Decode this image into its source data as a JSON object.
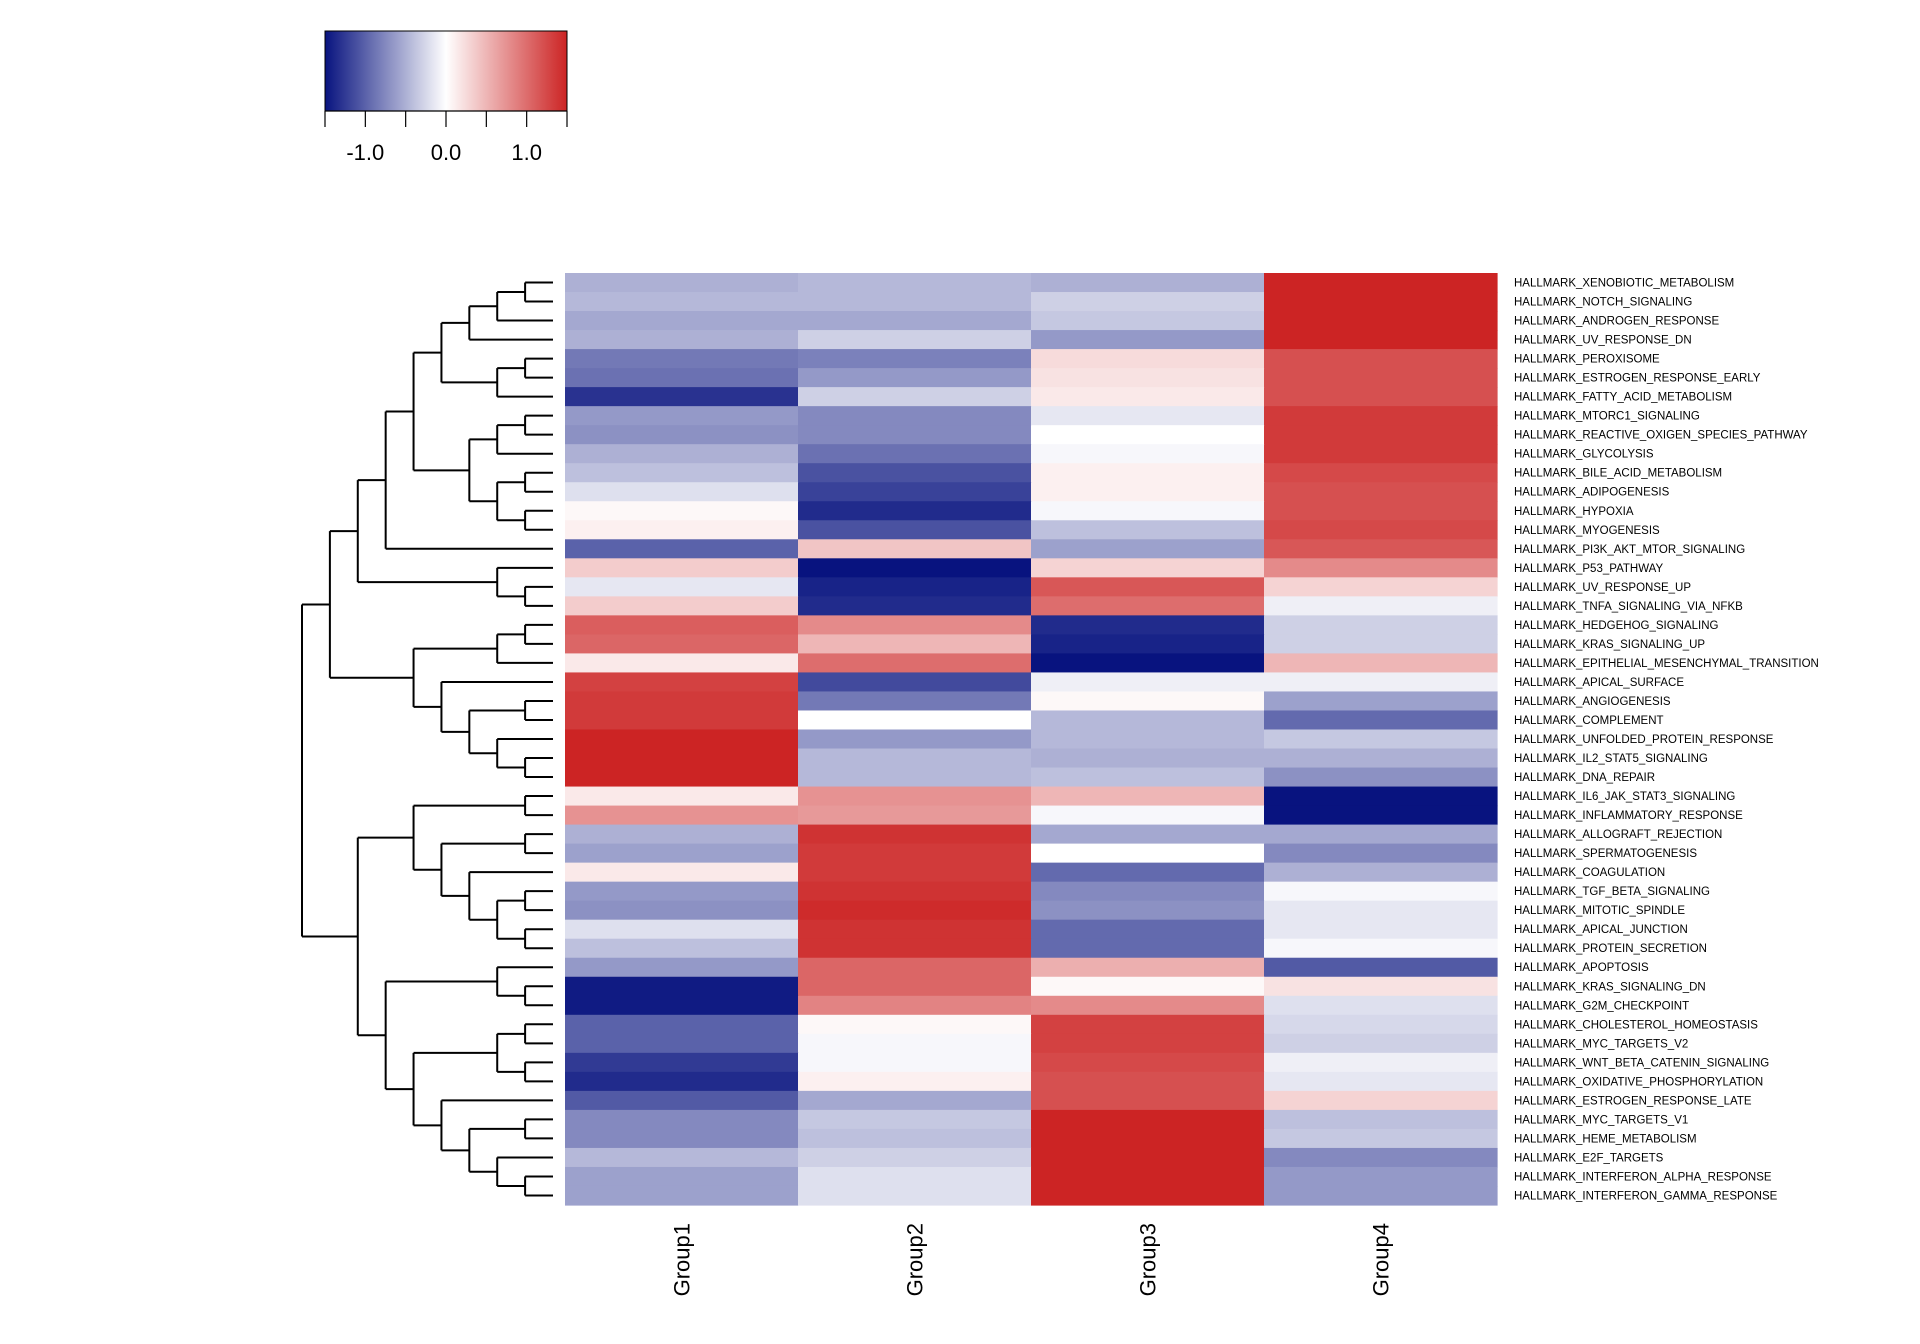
{
  "chart_data": {
    "type": "heatmap",
    "title": "",
    "xlabel": "",
    "ylabel": "",
    "color_scale": {
      "low_color": "#08137f",
      "mid_color": "#ffffff",
      "high_color": "#cc2424",
      "range": [
        -1.5,
        1.5
      ],
      "ticks": [
        -1.5,
        -1.0,
        -0.5,
        0.0,
        0.5,
        1.0,
        1.5
      ],
      "tick_labels": [
        "-1.0",
        "0.0",
        "1.0"
      ],
      "tick_label_values": [
        -1.0,
        0.0,
        1.0
      ],
      "legend_placement": "top-left"
    },
    "columns": [
      "Group1",
      "Group2",
      "Group3",
      "Group4"
    ],
    "rows": [
      "HALLMARK_XENOBIOTIC_METABOLISM",
      "HALLMARK_NOTCH_SIGNALING",
      "HALLMARK_ANDROGEN_RESPONSE",
      "HALLMARK_UV_RESPONSE_DN",
      "HALLMARK_PEROXISOME",
      "HALLMARK_ESTROGEN_RESPONSE_EARLY",
      "HALLMARK_FATTY_ACID_METABOLISM",
      "HALLMARK_MTORC1_SIGNALING",
      "HALLMARK_REACTIVE_OXIGEN_SPECIES_PATHWAY",
      "HALLMARK_GLYCOLYSIS",
      "HALLMARK_BILE_ACID_METABOLISM",
      "HALLMARK_ADIPOGENESIS",
      "HALLMARK_HYPOXIA",
      "HALLMARK_MYOGENESIS",
      "HALLMARK_PI3K_AKT_MTOR_SIGNALING",
      "HALLMARK_P53_PATHWAY",
      "HALLMARK_UV_RESPONSE_UP",
      "HALLMARK_TNFA_SIGNALING_VIA_NFKB",
      "HALLMARK_HEDGEHOG_SIGNALING",
      "HALLMARK_KRAS_SIGNALING_UP",
      "HALLMARK_EPITHELIAL_MESENCHYMAL_TRANSITION",
      "HALLMARK_APICAL_SURFACE",
      "HALLMARK_ANGIOGENESIS",
      "HALLMARK_COMPLEMENT",
      "HALLMARK_UNFOLDED_PROTEIN_RESPONSE",
      "HALLMARK_IL2_STAT5_SIGNALING",
      "HALLMARK_DNA_REPAIR",
      "HALLMARK_IL6_JAK_STAT3_SIGNALING",
      "HALLMARK_INFLAMMATORY_RESPONSE",
      "HALLMARK_ALLOGRAFT_REJECTION",
      "HALLMARK_SPERMATOGENESIS",
      "HALLMARK_COAGULATION",
      "HALLMARK_TGF_BETA_SIGNALING",
      "HALLMARK_MITOTIC_SPINDLE",
      "HALLMARK_APICAL_JUNCTION",
      "HALLMARK_PROTEIN_SECRETION",
      "HALLMARK_APOPTOSIS",
      "HALLMARK_KRAS_SIGNALING_DN",
      "HALLMARK_G2M_CHECKPOINT",
      "HALLMARK_CHOLESTEROL_HOMEOSTASIS",
      "HALLMARK_MYC_TARGETS_V2",
      "HALLMARK_WNT_BETA_CATENIN_SIGNALING",
      "HALLMARK_OXIDATIVE_PHOSPHORYLATION",
      "HALLMARK_ESTROGEN_RESPONSE_LATE",
      "HALLMARK_MYC_TARGETS_V1",
      "HALLMARK_HEME_METABOLISM",
      "HALLMARK_E2F_TARGETS",
      "HALLMARK_INTERFERON_ALPHA_RESPONSE",
      "HALLMARK_INTERFERON_GAMMA_RESPONSE"
    ],
    "values": [
      [
        -0.5,
        -0.45,
        -0.5,
        1.5
      ],
      [
        -0.45,
        -0.45,
        -0.3,
        1.5
      ],
      [
        -0.55,
        -0.55,
        -0.35,
        1.5
      ],
      [
        -0.5,
        -0.3,
        -0.65,
        1.5
      ],
      [
        -0.85,
        -0.8,
        0.25,
        1.2
      ],
      [
        -0.9,
        -0.65,
        0.2,
        1.2
      ],
      [
        -1.3,
        -0.3,
        0.15,
        1.2
      ],
      [
        -0.65,
        -0.75,
        -0.15,
        1.35
      ],
      [
        -0.7,
        -0.75,
        0.0,
        1.35
      ],
      [
        -0.5,
        -0.9,
        -0.05,
        1.35
      ],
      [
        -0.4,
        -1.1,
        0.1,
        1.25
      ],
      [
        -0.2,
        -1.2,
        0.1,
        1.2
      ],
      [
        0.05,
        -1.35,
        -0.05,
        1.2
      ],
      [
        0.1,
        -1.1,
        -0.4,
        1.25
      ],
      [
        -1.0,
        0.4,
        -0.6,
        1.15
      ],
      [
        0.35,
        -1.55,
        0.3,
        0.8
      ],
      [
        -0.15,
        -1.4,
        1.15,
        0.3
      ],
      [
        0.35,
        -1.35,
        1.0,
        -0.1
      ],
      [
        1.1,
        0.8,
        -1.35,
        -0.3
      ],
      [
        1.05,
        0.5,
        -1.4,
        -0.3
      ],
      [
        0.15,
        1.0,
        -1.55,
        0.5
      ],
      [
        1.3,
        -1.15,
        -0.1,
        -0.1
      ],
      [
        1.35,
        -0.85,
        0.05,
        -0.6
      ],
      [
        1.35,
        0.0,
        -0.45,
        -0.95
      ],
      [
        1.5,
        -0.65,
        -0.45,
        -0.35
      ],
      [
        1.5,
        -0.45,
        -0.5,
        -0.5
      ],
      [
        1.5,
        -0.45,
        -0.4,
        -0.7
      ],
      [
        0.15,
        0.75,
        0.5,
        -1.6
      ],
      [
        0.75,
        0.7,
        -0.05,
        -1.6
      ],
      [
        -0.5,
        1.4,
        -0.55,
        -0.55
      ],
      [
        -0.6,
        1.35,
        0.0,
        -0.75
      ],
      [
        0.15,
        1.35,
        -0.95,
        -0.5
      ],
      [
        -0.65,
        1.4,
        -0.75,
        -0.05
      ],
      [
        -0.7,
        1.45,
        -0.7,
        -0.15
      ],
      [
        -0.2,
        1.4,
        -0.95,
        -0.15
      ],
      [
        -0.4,
        1.4,
        -0.95,
        -0.05
      ],
      [
        -0.65,
        1.05,
        0.55,
        -1.05
      ],
      [
        -1.45,
        1.05,
        0.05,
        0.2
      ],
      [
        -1.45,
        0.85,
        0.8,
        -0.2
      ],
      [
        -1.0,
        0.05,
        1.3,
        -0.25
      ],
      [
        -1.0,
        -0.05,
        1.3,
        -0.3
      ],
      [
        -1.25,
        -0.05,
        1.25,
        -0.1
      ],
      [
        -1.35,
        0.1,
        1.2,
        -0.15
      ],
      [
        -1.05,
        -0.55,
        1.2,
        0.3
      ],
      [
        -0.75,
        -0.35,
        1.5,
        -0.4
      ],
      [
        -0.75,
        -0.4,
        1.5,
        -0.35
      ],
      [
        -0.45,
        -0.3,
        1.5,
        -0.75
      ],
      [
        -0.6,
        -0.2,
        1.5,
        -0.65
      ],
      [
        -0.6,
        -0.2,
        1.5,
        -0.65
      ]
    ]
  }
}
